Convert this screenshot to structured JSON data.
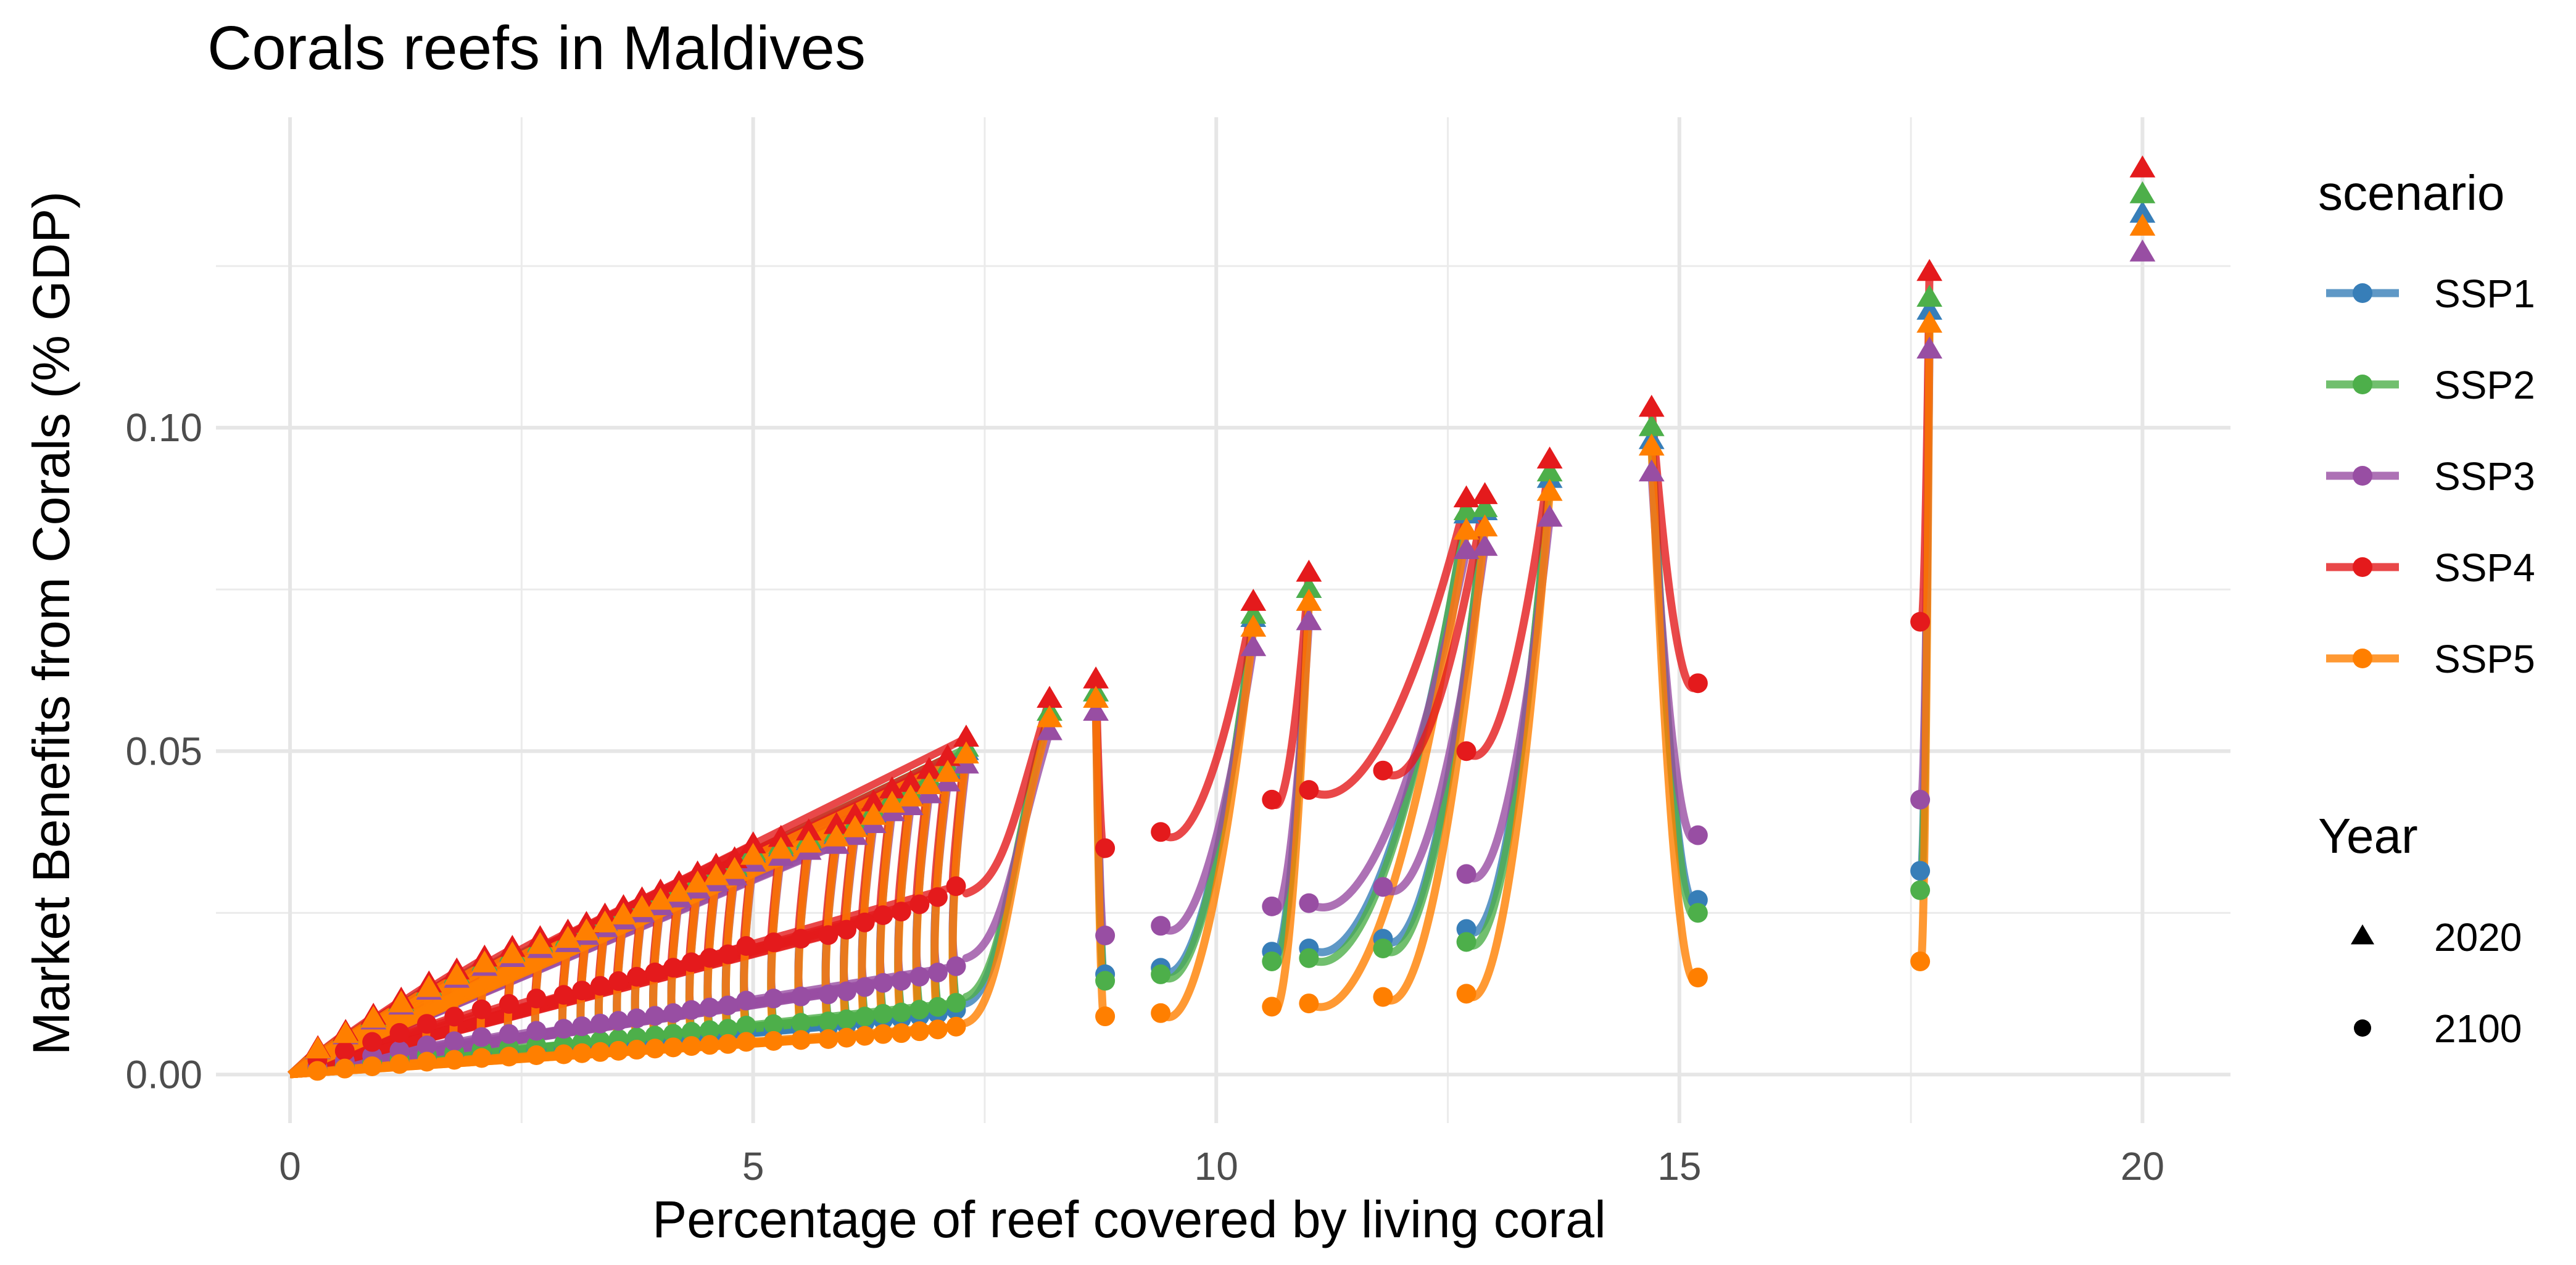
{
  "chart_data": {
    "type": "line",
    "title": "Corals reefs in Maldives",
    "xlabel": "Percentage of reef covered by living coral",
    "ylabel": "Market Benefits from Corals (% GDP)",
    "xlim": [
      -0.8,
      20.95
    ],
    "ylim": [
      -0.0075,
      0.148
    ],
    "x_ticks": [
      0,
      5,
      10,
      15,
      20
    ],
    "x_tick_labels": [
      "0",
      "5",
      "10",
      "15",
      "20"
    ],
    "y_ticks": [
      0.0,
      0.05,
      0.1
    ],
    "y_tick_labels": [
      "0.00",
      "0.05",
      "0.10"
    ],
    "grid": true,
    "legend_position": "right",
    "legend": {
      "scenario_title": "scenario",
      "year_title": "Year",
      "year_items": [
        {
          "label": "2020",
          "shape": "triangle"
        },
        {
          "label": "2100",
          "shape": "circle"
        }
      ]
    },
    "scenario_order": [
      "SSP1",
      "SSP2",
      "SSP3",
      "SSP4",
      "SSP5"
    ],
    "series": [
      {
        "name": "SSP1",
        "color": "#377EB8"
      },
      {
        "name": "SSP2",
        "color": "#4DAF4A"
      },
      {
        "name": "SSP3",
        "color": "#984EA3"
      },
      {
        "name": "SSP4",
        "color": "#E41A1C"
      },
      {
        "name": "SSP5",
        "color": "#FF7F00"
      }
    ],
    "small_reefs": {
      "x_2020": [
        0.3,
        0.6,
        0.9,
        1.2,
        1.5,
        1.8,
        2.1,
        2.4,
        2.7,
        3.0,
        3.2,
        3.4,
        3.6,
        3.8,
        4.0,
        4.2,
        4.4,
        4.6,
        4.8,
        5.0,
        5.3,
        5.6,
        5.9,
        6.1,
        6.3,
        6.5,
        6.7,
        6.9,
        7.1,
        7.3
      ],
      "y_2020_ssp4": [
        0.004,
        0.0065,
        0.009,
        0.0115,
        0.014,
        0.016,
        0.018,
        0.0195,
        0.021,
        0.022,
        0.0232,
        0.0245,
        0.0258,
        0.027,
        0.0282,
        0.0295,
        0.031,
        0.0322,
        0.0332,
        0.0355,
        0.0365,
        0.0375,
        0.0385,
        0.04,
        0.042,
        0.044,
        0.045,
        0.047,
        0.049,
        0.052
      ],
      "ratio_2020": {
        "SSP1": 0.96,
        "SSP2": 0.97,
        "SSP3": 0.92,
        "SSP4": 1.0,
        "SSP5": 0.95
      },
      "ratio_2100": {
        "SSP1": 0.2,
        "SSP2": 0.22,
        "SSP3": 0.35,
        "SSP4": 0.56,
        "SSP5": 0.15
      }
    },
    "large_reefs": [
      {
        "x_2020": 8.2,
        "x_2100": null,
        "y_2020": {
          "SSP1": 0.056,
          "SSP2": 0.056,
          "SSP3": 0.053,
          "SSP4": 0.058,
          "SSP5": 0.055
        },
        "y_2100": {
          "SSP1": 0.011,
          "SSP2": 0.012,
          "SSP3": 0.018,
          "SSP4": 0.028,
          "SSP5": 0.008
        }
      },
      {
        "x_2020": 8.7,
        "x_2100": 8.8,
        "y_2020": {
          "SSP1": 0.059,
          "SSP2": 0.059,
          "SSP3": 0.056,
          "SSP4": 0.061,
          "SSP5": 0.058
        },
        "y_2100": {
          "SSP1": 0.0155,
          "SSP2": 0.0145,
          "SSP3": 0.0215,
          "SSP4": 0.035,
          "SSP5": 0.009
        }
      },
      {
        "x_2020": 10.4,
        "x_2100": 9.4,
        "y_2020": {
          "SSP1": 0.0705,
          "SSP2": 0.071,
          "SSP3": 0.066,
          "SSP4": 0.073,
          "SSP5": 0.069
        },
        "y_2100": {
          "SSP1": 0.0165,
          "SSP2": 0.0155,
          "SSP3": 0.023,
          "SSP4": 0.0375,
          "SSP5": 0.0095
        }
      },
      {
        "x_2020": 11.0,
        "x_2100": 10.6,
        "y_2020": {
          "SSP1": 0.075,
          "SSP2": 0.075,
          "SSP3": 0.07,
          "SSP4": 0.0775,
          "SSP5": 0.073
        },
        "y_2100": {
          "SSP1": 0.019,
          "SSP2": 0.0175,
          "SSP3": 0.026,
          "SSP4": 0.0425,
          "SSP5": 0.0105
        }
      },
      {
        "x_2020": 12.7,
        "x_2100": 11.0,
        "y_2020": {
          "SSP1": 0.0865,
          "SSP2": 0.087,
          "SSP3": 0.081,
          "SSP4": 0.089,
          "SSP5": 0.084
        },
        "y_2100": {
          "SSP1": 0.0195,
          "SSP2": 0.018,
          "SSP3": 0.0265,
          "SSP4": 0.044,
          "SSP5": 0.011
        }
      },
      {
        "x_2020": 12.9,
        "x_2100": 11.8,
        "y_2020": {
          "SSP1": 0.087,
          "SSP2": 0.0875,
          "SSP3": 0.0815,
          "SSP4": 0.0895,
          "SSP5": 0.0845
        },
        "y_2100": {
          "SSP1": 0.021,
          "SSP2": 0.0195,
          "SSP3": 0.029,
          "SSP4": 0.047,
          "SSP5": 0.012
        }
      },
      {
        "x_2020": 13.6,
        "x_2100": 12.7,
        "y_2020": {
          "SSP1": 0.092,
          "SSP2": 0.093,
          "SSP3": 0.086,
          "SSP4": 0.095,
          "SSP5": 0.09
        },
        "y_2100": {
          "SSP1": 0.0225,
          "SSP2": 0.0205,
          "SSP3": 0.031,
          "SSP4": 0.05,
          "SSP5": 0.0125
        }
      },
      {
        "x_2020": 14.7,
        "x_2100": 15.2,
        "y_2020": {
          "SSP1": 0.098,
          "SSP2": 0.1,
          "SSP3": 0.093,
          "SSP4": 0.103,
          "SSP5": 0.097
        },
        "y_2100": {
          "SSP1": 0.027,
          "SSP2": 0.025,
          "SSP3": 0.037,
          "SSP4": 0.0605,
          "SSP5": 0.015
        }
      },
      {
        "x_2020": 17.7,
        "x_2100": 17.6,
        "y_2020": {
          "SSP1": 0.118,
          "SSP2": 0.12,
          "SSP3": 0.112,
          "SSP4": 0.124,
          "SSP5": 0.116
        },
        "y_2100": {
          "SSP1": 0.0315,
          "SSP2": 0.0285,
          "SSP3": 0.0425,
          "SSP4": 0.07,
          "SSP5": 0.0175
        }
      },
      {
        "x_2020": 20.0,
        "x_2100": null,
        "y_2020": {
          "SSP1": 0.133,
          "SSP2": 0.136,
          "SSP3": 0.127,
          "SSP4": 0.14,
          "SSP5": 0.131
        },
        "y_2100": null
      }
    ]
  }
}
